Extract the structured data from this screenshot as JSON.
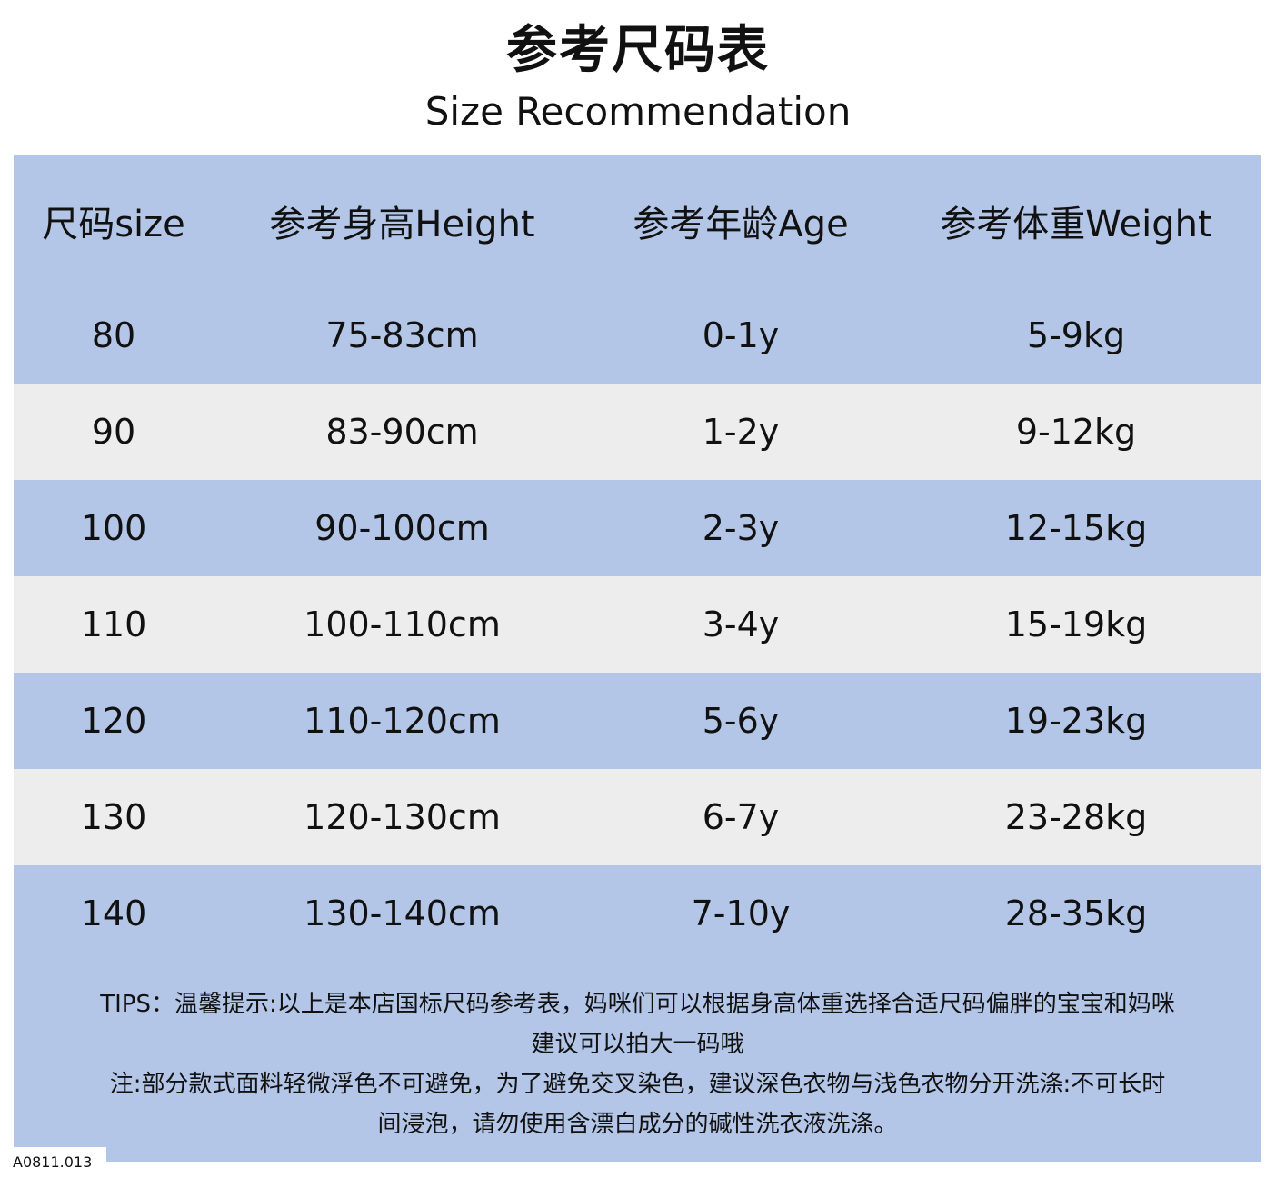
{
  "title": "参考尺码表",
  "subtitle": "Size Recommendation",
  "table": {
    "headers": [
      "尺码size",
      "参考身高Height",
      "参考年龄Age",
      "参考体重Weight"
    ],
    "rows": [
      [
        "80",
        "75-83cm",
        "0-1y",
        "5-9kg"
      ],
      [
        "90",
        "83-90cm",
        "1-2y",
        "9-12kg"
      ],
      [
        "100",
        "90-100cm",
        "2-3y",
        "12-15kg"
      ],
      [
        "110",
        "100-110cm",
        "3-4y",
        "15-19kg"
      ],
      [
        "120",
        "110-120cm",
        "5-6y",
        "19-23kg"
      ],
      [
        "130",
        "120-130cm",
        "6-7y",
        "23-28kg"
      ],
      [
        "140",
        "130-140cm",
        "7-10y",
        "28-35kg"
      ]
    ]
  },
  "tips": {
    "line1": "TIPS：温馨提示:以上是本店国标尺码参考表，妈咪们可以根据身高体重选择合适尺码偏胖的宝宝和妈咪",
    "line2": "建议可以拍大一码哦",
    "line3": "注:部分款式面料轻微浮色不可避免，为了避免交叉染色，建议深色衣物与浅色衣物分开洗涤:不可长时",
    "line4": "间浸泡，请勿使用含漂白成分的碱性洗衣液洗涤。"
  },
  "product_code": "A0811.013",
  "colors": {
    "header_blue": "#b4c6e7",
    "row_gray": "#ededed"
  }
}
